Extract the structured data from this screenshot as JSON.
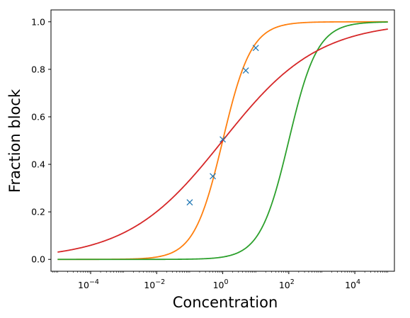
{
  "chart_data": {
    "type": "line",
    "xlabel": "Concentration",
    "ylabel": "Fraction block",
    "xscale": "log",
    "xlim": [
      6.3e-06,
      158000
    ],
    "ylim": [
      -0.05,
      1.05
    ],
    "grid": false,
    "x_ticks": [
      {
        "value": 0.0001,
        "base": "10",
        "exp": "−4"
      },
      {
        "value": 0.01,
        "base": "10",
        "exp": "−2"
      },
      {
        "value": 1,
        "base": "10",
        "exp": "0"
      },
      {
        "value": 100,
        "base": "10",
        "exp": "2"
      },
      {
        "value": 10000,
        "base": "10",
        "exp": "4"
      }
    ],
    "y_ticks": [
      "0.0",
      "0.2",
      "0.4",
      "0.6",
      "0.8",
      "1.0"
    ],
    "y_tick_values": [
      0.0,
      0.2,
      0.4,
      0.6,
      0.8,
      1.0
    ],
    "points": {
      "marker": "x",
      "color": "#1f77b4",
      "x": [
        0.1,
        0.5,
        1.0,
        5.0,
        10.0
      ],
      "y": [
        0.24,
        0.35,
        0.505,
        0.795,
        0.89
      ]
    },
    "curves": [
      {
        "color": "#ff7f0e",
        "ic50": 1.0,
        "hill": 1.0,
        "x_range": [
          1e-05,
          100000
        ]
      },
      {
        "color": "#2ca02c",
        "ic50": 100.0,
        "hill": 1.0,
        "x_range": [
          1e-05,
          100000
        ]
      },
      {
        "color": "#d62728",
        "ic50": 1.0,
        "hill": 0.3,
        "x_range": [
          1e-05,
          100000
        ]
      }
    ]
  }
}
